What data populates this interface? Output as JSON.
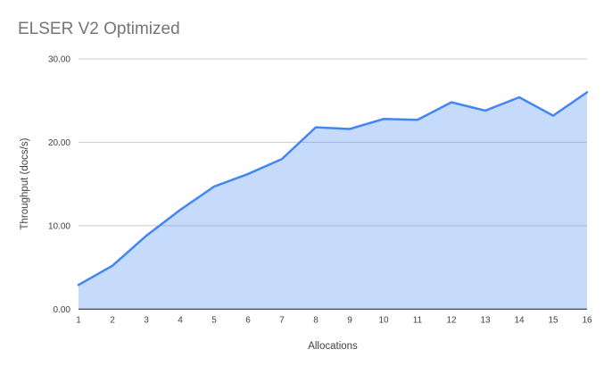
{
  "chart_data": {
    "type": "area",
    "title": "ELSER V2 Optimized",
    "xlabel": "Allocations",
    "ylabel": "Throughput (docs/s)",
    "x": [
      1,
      2,
      3,
      4,
      5,
      6,
      7,
      8,
      9,
      10,
      11,
      12,
      13,
      14,
      15,
      16
    ],
    "values": [
      2.9,
      5.2,
      8.8,
      11.9,
      14.7,
      16.2,
      18.0,
      21.8,
      21.6,
      22.8,
      22.7,
      24.8,
      23.8,
      25.4,
      23.2,
      26.0
    ],
    "ylim": [
      0,
      30
    ],
    "yticks": [
      0,
      10,
      20,
      30
    ],
    "ytick_labels": [
      "0.00",
      "10.00",
      "20.00",
      "30.00"
    ],
    "grid": true,
    "legend": "none",
    "colors": {
      "line": "#4285f4",
      "fill": "#4285f4",
      "fill_opacity": 0.3,
      "grid": "#cccccc",
      "axis": "#333333",
      "tick_text": "#424242",
      "axis_title_text": "#424242",
      "title_text": "#757575",
      "background": "#ffffff"
    }
  }
}
